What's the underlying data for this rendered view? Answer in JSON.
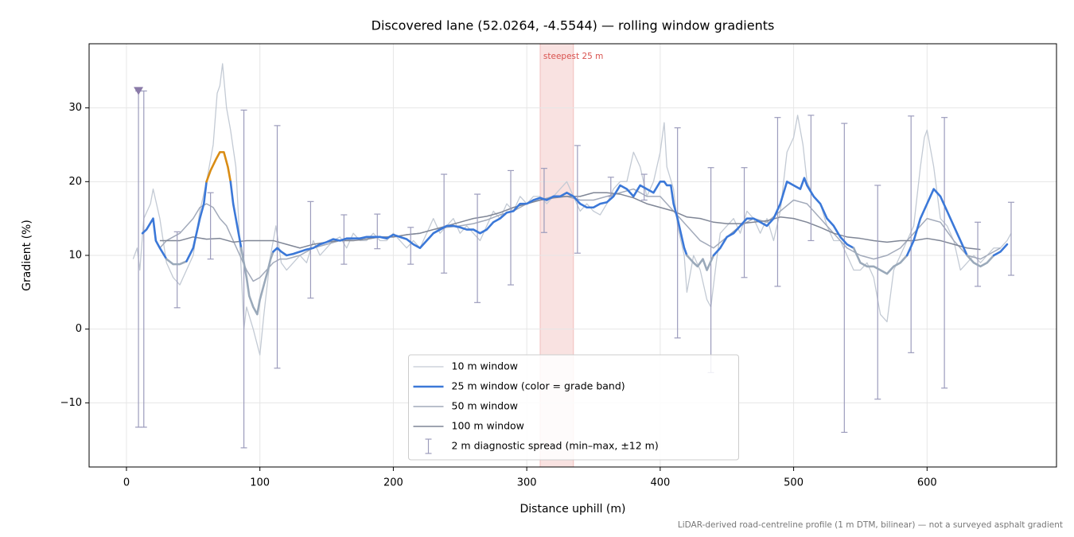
{
  "chart_data": {
    "type": "line",
    "title": "Discovered lane (52.0264, -4.5544) — rolling window gradients",
    "xlabel": "Distance uphill (m)",
    "ylabel": "Gradient (%)",
    "footnote": "LiDAR-derived road-centreline profile (1 m DTM, bilinear) — not a surveyed asphalt gradient",
    "xlim": [
      -28,
      697
    ],
    "ylim": [
      -18.7,
      38.7
    ],
    "xticks": [
      0,
      100,
      200,
      300,
      400,
      500,
      600
    ],
    "yticks": [
      {
        "value": -10,
        "label": "−10"
      },
      0,
      10,
      20,
      30
    ],
    "grid": true,
    "legend": "lower center",
    "span": {
      "x0": 310,
      "x1": 335,
      "label": "steepest 25 m",
      "color": "#d9534f"
    },
    "series": [
      {
        "name": "10 m window",
        "type": "line",
        "color": "#c3cad4",
        "width": 1.3,
        "x": [
          5,
          8,
          10,
          13,
          18,
          20,
          25,
          30,
          35,
          40,
          45,
          50,
          55,
          60,
          65,
          68,
          70,
          72,
          75,
          78,
          82,
          86,
          88,
          90,
          95,
          100,
          103,
          108,
          112,
          116,
          120,
          125,
          130,
          135,
          140,
          145,
          150,
          155,
          160,
          165,
          170,
          175,
          180,
          185,
          190,
          195,
          200,
          205,
          210,
          215,
          220,
          225,
          230,
          235,
          240,
          245,
          250,
          255,
          260,
          265,
          270,
          275,
          280,
          285,
          290,
          295,
          300,
          305,
          310,
          315,
          320,
          325,
          330,
          335,
          340,
          345,
          350,
          355,
          360,
          365,
          370,
          375,
          380,
          385,
          390,
          395,
          400,
          403,
          405,
          410,
          413,
          418,
          420,
          425,
          430,
          435,
          438,
          442,
          445,
          450,
          455,
          460,
          465,
          470,
          475,
          480,
          485,
          490,
          495,
          500,
          503,
          507,
          510,
          515,
          520,
          525,
          530,
          535,
          540,
          545,
          550,
          555,
          560,
          565,
          570,
          575,
          580,
          585,
          590,
          595,
          598,
          600,
          605,
          610,
          615,
          620,
          625,
          630,
          635,
          640,
          645,
          650,
          655,
          660,
          663
        ],
        "values": [
          9.5,
          11,
          8,
          15,
          17,
          19,
          15,
          9,
          7,
          6,
          8,
          10,
          16,
          20,
          25,
          32,
          33,
          36,
          30,
          27,
          22,
          8,
          0,
          3,
          0,
          -3.5,
          2,
          10,
          14,
          9,
          8,
          9,
          10,
          9,
          12,
          10,
          11,
          12,
          12.5,
          11,
          13,
          12,
          12,
          13,
          12,
          12,
          13,
          12,
          11,
          12,
          11,
          13,
          15,
          13,
          14,
          15,
          13,
          14,
          13,
          12,
          14,
          16,
          15,
          17,
          16,
          18,
          17,
          18,
          18,
          17,
          18,
          19,
          20,
          18,
          16,
          17,
          16,
          15.5,
          17,
          19,
          20,
          20,
          24,
          22,
          18,
          20,
          24,
          28,
          22,
          19,
          14,
          10,
          5,
          10,
          8,
          4,
          3,
          9,
          13,
          14,
          15,
          13,
          16,
          15,
          13,
          15,
          12,
          16,
          24,
          26,
          29,
          25,
          20,
          18,
          17,
          14,
          12,
          12,
          10,
          8,
          8,
          9,
          7,
          2,
          1,
          8,
          10,
          12,
          14,
          22,
          26,
          27,
          22,
          15,
          14,
          12,
          8,
          9,
          10,
          9,
          10,
          11,
          11,
          12,
          13
        ]
      },
      {
        "name": "25 m window (color = grade band)",
        "type": "banded",
        "color": "#3b78d8",
        "width": 2.6,
        "band_edges": [
          10,
          20
        ],
        "band_colors": [
          "#9aa9ba",
          "#3b78d8",
          "#d98c14"
        ],
        "x": [
          12,
          15,
          20,
          22,
          25,
          30,
          35,
          40,
          45,
          50,
          55,
          58,
          60,
          63,
          67,
          70,
          73,
          76,
          78,
          80,
          83,
          86,
          88,
          90,
          92,
          95,
          98,
          100,
          103,
          106,
          108,
          110,
          113,
          116,
          120,
          125,
          130,
          135,
          140,
          145,
          150,
          155,
          160,
          165,
          170,
          175,
          180,
          185,
          190,
          195,
          200,
          205,
          210,
          215,
          220,
          225,
          230,
          235,
          240,
          245,
          250,
          255,
          260,
          265,
          270,
          275,
          280,
          285,
          290,
          295,
          300,
          305,
          310,
          315,
          320,
          325,
          330,
          335,
          340,
          345,
          350,
          355,
          360,
          365,
          370,
          375,
          380,
          385,
          390,
          395,
          400,
          403,
          405,
          408,
          410,
          413,
          418,
          420,
          425,
          428,
          432,
          435,
          440,
          445,
          450,
          455,
          460,
          465,
          470,
          475,
          480,
          485,
          490,
          495,
          500,
          505,
          508,
          510,
          515,
          520,
          525,
          530,
          535,
          540,
          545,
          550,
          555,
          560,
          565,
          570,
          575,
          580,
          585,
          590,
          595,
          600,
          605,
          610,
          615,
          620,
          625,
          630,
          635,
          640,
          645,
          650,
          655,
          660
        ],
        "values": [
          13,
          13.5,
          15,
          12,
          11,
          9.5,
          8.8,
          8.8,
          9.2,
          11,
          15,
          17,
          20,
          21.5,
          23,
          24,
          24,
          22,
          20,
          17,
          14,
          11,
          9,
          7,
          4.5,
          3,
          2,
          4,
          6,
          8,
          9.5,
          10.5,
          11,
          10.5,
          10,
          10.2,
          10.5,
          10.8,
          11,
          11.5,
          11.8,
          12.2,
          12,
          12.3,
          12.3,
          12.3,
          12.5,
          12.5,
          12.5,
          12.3,
          12.8,
          12.5,
          12.2,
          11.5,
          11,
          12,
          13,
          13.5,
          14,
          14,
          13.8,
          13.5,
          13.5,
          13,
          13.5,
          14.5,
          15,
          15.8,
          16,
          17,
          17,
          17.5,
          17.8,
          17.5,
          18,
          18,
          18.5,
          18,
          17,
          16.5,
          16.5,
          17,
          17.2,
          18,
          19.5,
          19,
          18,
          19.5,
          19,
          18.5,
          20,
          20,
          19.5,
          19.5,
          17,
          15,
          11,
          10,
          9,
          8.5,
          9.5,
          8,
          10,
          11,
          12.5,
          13,
          14,
          15,
          15,
          14.5,
          14,
          15,
          17,
          20,
          19.5,
          19,
          20.5,
          19.5,
          18,
          17,
          15,
          14,
          12.5,
          11.5,
          11,
          9,
          8.5,
          8.5,
          8,
          7.5,
          8.5,
          9,
          10,
          12,
          15,
          17,
          19,
          18,
          16,
          14,
          12,
          10,
          9,
          8.5,
          9,
          10,
          10.5,
          11.5
        ]
      },
      {
        "name": "50 m window",
        "type": "line",
        "color": "#a2aaba",
        "width": 1.5,
        "x": [
          25,
          30,
          40,
          50,
          55,
          60,
          65,
          70,
          75,
          80,
          85,
          90,
          95,
          100,
          105,
          110,
          115,
          120,
          130,
          140,
          150,
          160,
          170,
          180,
          190,
          200,
          210,
          220,
          230,
          240,
          250,
          260,
          270,
          280,
          290,
          300,
          310,
          320,
          330,
          340,
          350,
          360,
          370,
          380,
          390,
          400,
          410,
          420,
          430,
          440,
          450,
          460,
          470,
          480,
          490,
          500,
          510,
          520,
          530,
          540,
          550,
          560,
          570,
          580,
          590,
          600,
          610,
          620,
          630,
          640,
          650,
          655
        ],
        "values": [
          11,
          12,
          13,
          15,
          16.5,
          17,
          16.5,
          15,
          14,
          12,
          10,
          8,
          6.5,
          7,
          8,
          9,
          9.5,
          9.5,
          10,
          11,
          11.5,
          12,
          12.2,
          12.4,
          12.5,
          12.5,
          12.8,
          13,
          13.5,
          13.8,
          14,
          14.3,
          14.8,
          15.5,
          16,
          17,
          17.5,
          18,
          18,
          17.5,
          17.5,
          18,
          18.5,
          19,
          18,
          18,
          16,
          14,
          12,
          11,
          12.5,
          14,
          15,
          14.5,
          16,
          17.5,
          17,
          15,
          13,
          11,
          10,
          9.5,
          10,
          11,
          13,
          15,
          14.5,
          12,
          10,
          9.5,
          10.5,
          11
        ]
      },
      {
        "name": "100 m window",
        "type": "line",
        "color": "#7f8696",
        "width": 1.5,
        "x": [
          25,
          40,
          50,
          60,
          70,
          80,
          90,
          100,
          110,
          120,
          130,
          140,
          150,
          160,
          170,
          180,
          190,
          200,
          210,
          220,
          230,
          240,
          250,
          260,
          270,
          280,
          290,
          300,
          310,
          320,
          330,
          340,
          350,
          360,
          370,
          380,
          390,
          400,
          410,
          420,
          430,
          440,
          450,
          460,
          470,
          480,
          490,
          500,
          510,
          520,
          530,
          540,
          550,
          560,
          570,
          580,
          590,
          600,
          610,
          620,
          630,
          640
        ],
        "values": [
          12,
          12,
          12.5,
          12.2,
          12.3,
          11.8,
          12,
          12,
          12,
          11.5,
          11,
          11.5,
          11.8,
          12,
          12,
          12.2,
          12.5,
          12.5,
          12.8,
          13,
          13.5,
          14,
          14.5,
          15,
          15.3,
          15.8,
          16.5,
          17,
          17.5,
          17.8,
          18,
          18,
          18.5,
          18.5,
          18.3,
          17.8,
          17,
          16.5,
          16,
          15.2,
          15,
          14.5,
          14.3,
          14.3,
          14.5,
          14.7,
          15.2,
          15,
          14.5,
          13.8,
          13,
          12.5,
          12.3,
          12,
          11.8,
          12,
          12,
          12.3,
          12,
          11.5,
          11,
          10.8
        ]
      },
      {
        "name": "2 m diagnostic spread (min–max, ±12 m)",
        "type": "errorbar",
        "color": "#9c9cbc",
        "x": [
          9,
          13,
          38,
          63,
          88,
          113,
          138,
          163,
          188,
          213,
          238,
          263,
          288,
          313,
          338,
          363,
          388,
          413,
          438,
          463,
          488,
          513,
          538,
          563,
          588,
          613,
          638,
          663
        ],
        "low": [
          -13.3,
          -13.3,
          2.9,
          9.5,
          -16.1,
          -5.3,
          4.2,
          8.8,
          10.9,
          8.8,
          7.6,
          3.6,
          6.0,
          13.1,
          10.3,
          18,
          17.5,
          -1.2,
          -5.9,
          7.0,
          5.8,
          12,
          -14.0,
          -9.5,
          -3.2,
          -8.0,
          5.8,
          7.3
        ],
        "high": [
          32.3,
          32.3,
          13.2,
          18.5,
          29.7,
          27.6,
          17.3,
          15.5,
          15.6,
          13.8,
          21.0,
          18.3,
          21.5,
          21.8,
          24.9,
          20.6,
          21,
          27.3,
          21.9,
          21.9,
          28.7,
          29,
          27.9,
          19.5,
          28.9,
          28.7,
          14.5,
          17.2
        ]
      }
    ],
    "markers": [
      {
        "x": 9,
        "y": 32.3,
        "color": "#8a7aa8"
      }
    ]
  }
}
